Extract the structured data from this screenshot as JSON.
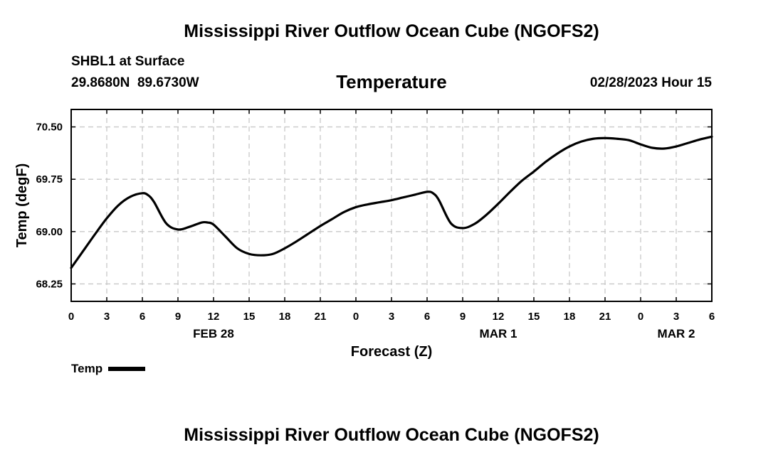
{
  "header": {
    "title": "Mississippi River Outflow Ocean Cube (NGOFS2)",
    "station": "SHBL1 at Surface",
    "coords": "29.8680N  89.6730W",
    "variable": "Temperature",
    "datetime": "02/28/2023 Hour 15"
  },
  "footer": {
    "title": "Mississippi River Outflow Ocean Cube (NGOFS2)"
  },
  "legend": {
    "label": "Temp"
  },
  "colors": {
    "line": "#000000",
    "grid": "#c8c8c8",
    "background": "#ffffff"
  },
  "chart_data": {
    "type": "line",
    "title": "Temperature",
    "xlabel": "Forecast (Z)",
    "ylabel": "Temp (degF)",
    "xlim": [
      0,
      54
    ],
    "ylim": [
      68.0,
      70.75
    ],
    "yticks": [
      68.25,
      69.0,
      69.75,
      70.5
    ],
    "ytick_labels": [
      "68.25",
      "69.00",
      "69.75",
      "70.50"
    ],
    "xticks": [
      0,
      3,
      6,
      9,
      12,
      15,
      18,
      21,
      24,
      27,
      30,
      33,
      36,
      39,
      42,
      45,
      48,
      51,
      54
    ],
    "xtick_labels": [
      "0",
      "3",
      "6",
      "9",
      "12",
      "15",
      "18",
      "21",
      "0",
      "3",
      "6",
      "9",
      "12",
      "15",
      "18",
      "21",
      "0",
      "3",
      "6"
    ],
    "date_labels": [
      {
        "x": 12,
        "label": "FEB 28"
      },
      {
        "x": 36,
        "label": "MAR 1"
      },
      {
        "x": 51,
        "label": "MAR 2"
      }
    ],
    "grid": true,
    "legend_position": "bottom-left",
    "series": [
      {
        "name": "Temp",
        "x": [
          0,
          1,
          2,
          3,
          4,
          5,
          6,
          6.5,
          7,
          8,
          9,
          10,
          11,
          11.5,
          12,
          13,
          14,
          15,
          16,
          17,
          18,
          19,
          20,
          21,
          22,
          23,
          24,
          25,
          26,
          27,
          28,
          29,
          30,
          30.5,
          31,
          32,
          33,
          34,
          35,
          36,
          37,
          38,
          39,
          40,
          41,
          42,
          43,
          44,
          45,
          46,
          47,
          48,
          49,
          50,
          51,
          52,
          53,
          54
        ],
        "values": [
          68.48,
          68.72,
          68.96,
          69.19,
          69.38,
          69.5,
          69.55,
          69.52,
          69.42,
          69.12,
          69.03,
          69.07,
          69.13,
          69.13,
          69.1,
          68.93,
          68.76,
          68.68,
          68.66,
          68.68,
          68.76,
          68.86,
          68.97,
          69.08,
          69.18,
          69.28,
          69.35,
          69.39,
          69.42,
          69.45,
          69.49,
          69.53,
          69.57,
          69.55,
          69.45,
          69.12,
          69.05,
          69.11,
          69.24,
          69.4,
          69.57,
          69.73,
          69.86,
          70.0,
          70.12,
          70.22,
          70.29,
          70.33,
          70.34,
          70.33,
          70.31,
          70.25,
          70.2,
          70.19,
          70.22,
          70.27,
          70.32,
          70.36
        ]
      }
    ]
  }
}
